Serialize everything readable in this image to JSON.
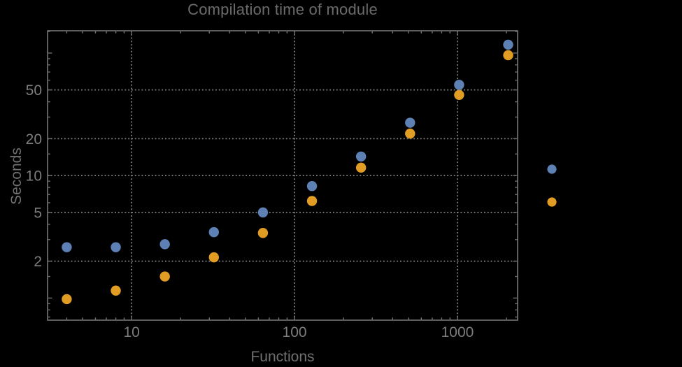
{
  "chart_data": {
    "type": "scatter",
    "title": "Compilation time of module",
    "xlabel": "Functions",
    "ylabel": "Seconds",
    "x_scale": "log",
    "y_scale": "log",
    "xlim": [
      3.05,
      2340
    ],
    "ylim": [
      0.66,
      152
    ],
    "grid": "dotted lines at labeled major ticks only",
    "legend_position": "right-outside, markers only (no visible text)",
    "x": [
      4,
      8,
      16,
      32,
      64,
      128,
      256,
      512,
      1024,
      2048
    ],
    "series": [
      {
        "name": "series-1",
        "color": "#5e81b5",
        "values": [
          2.6,
          2.6,
          2.75,
          3.45,
          5.0,
          8.2,
          14.3,
          27,
          55,
          117
        ]
      },
      {
        "name": "series-2",
        "color": "#e19c24",
        "values": [
          0.98,
          1.15,
          1.5,
          2.15,
          3.4,
          6.2,
          11.6,
          22,
          45.5,
          96
        ]
      }
    ],
    "x_ticks": {
      "major": [
        10,
        100,
        1000
      ],
      "labels": [
        "10",
        "100",
        "1000"
      ],
      "minor": [
        4,
        5,
        6,
        7,
        8,
        9,
        20,
        30,
        40,
        50,
        60,
        70,
        80,
        90,
        200,
        300,
        400,
        500,
        600,
        700,
        800,
        900,
        2000
      ]
    },
    "y_ticks": {
      "major": [
        2,
        5,
        10,
        20,
        50
      ],
      "labels": [
        "2",
        "5",
        "10",
        "20",
        "50"
      ],
      "major_unlabeled": [
        1,
        100
      ],
      "minor": [
        0.7,
        0.8,
        0.9,
        1.5,
        3,
        4,
        6,
        7,
        8,
        9,
        15,
        30,
        40,
        60,
        70,
        80,
        90,
        150
      ]
    },
    "legend": {
      "entries": [
        {
          "color": "#5e81b5",
          "label": ""
        },
        {
          "color": "#e19c24",
          "label": ""
        }
      ]
    },
    "colors": {
      "background": "#000000",
      "frame": "#6e6e6e",
      "grid": "#979797",
      "tick_text": "#7d7d7d",
      "title_text": "#6b6b6b",
      "axis_label_text": "#717171",
      "series_blue": "#5e81b5",
      "series_orange": "#e19c24"
    }
  }
}
